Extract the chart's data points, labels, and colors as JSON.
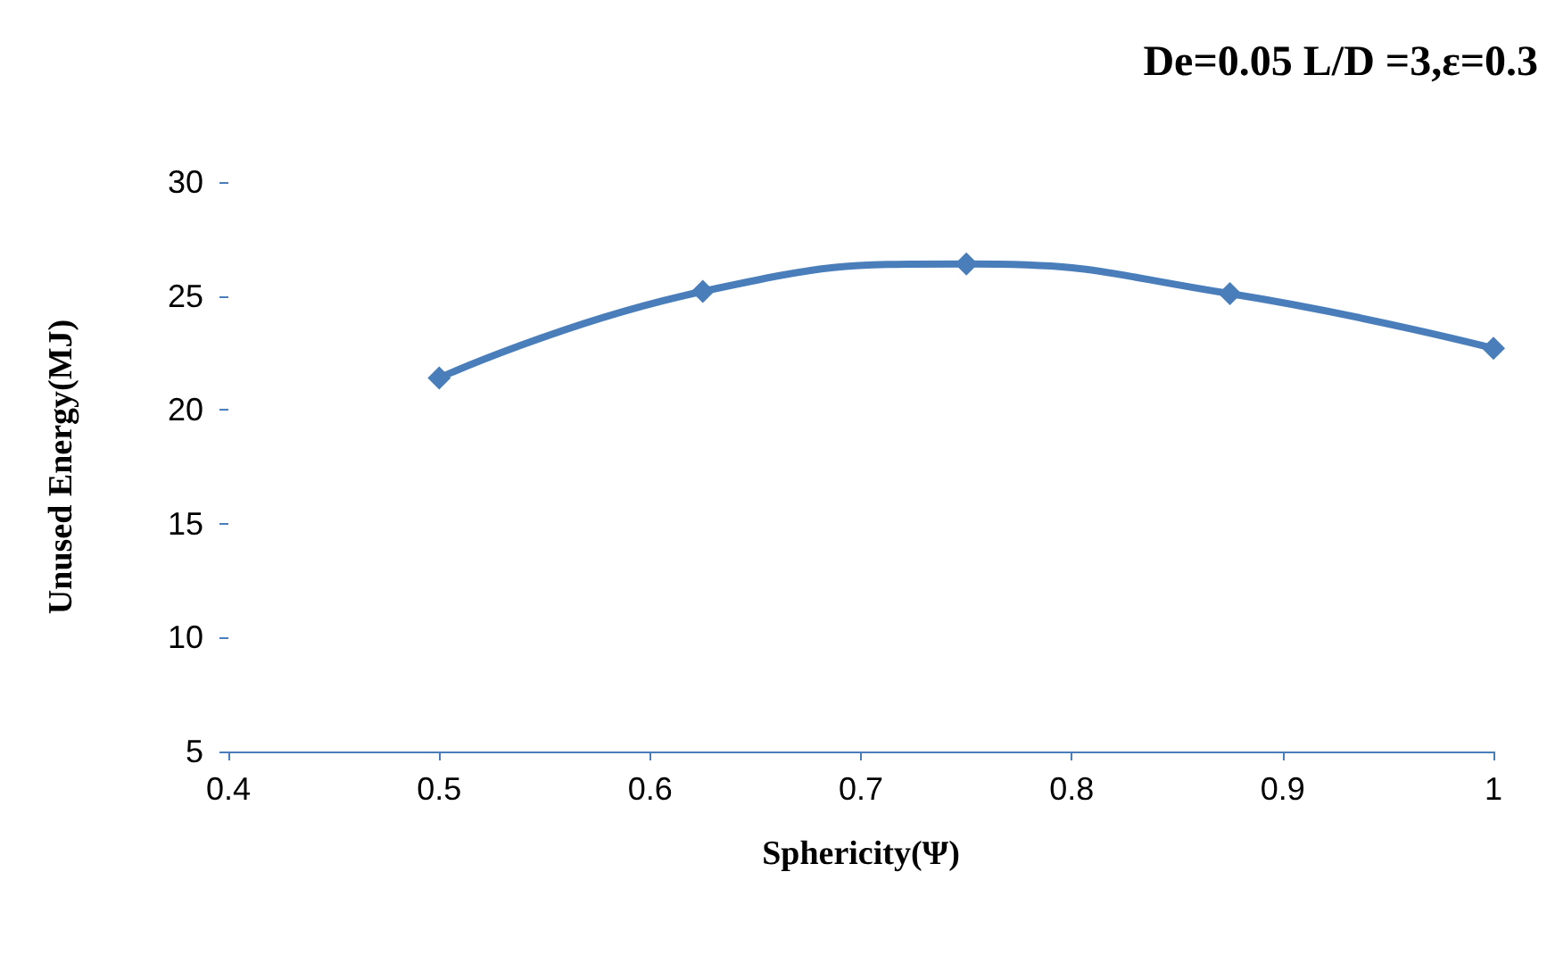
{
  "chart_data": {
    "type": "line",
    "title": "De=0.05 L/D =3,ε=0.3",
    "xlabel": "Sphericity(Ψ)",
    "ylabel": "Unused Energy(MJ)",
    "x": [
      0.5,
      0.625,
      0.75,
      0.875,
      1
    ],
    "series": [
      {
        "color": "#4a7ebb",
        "values": [
          21.4,
          25.2,
          26.4,
          25.1,
          22.7
        ]
      }
    ],
    "xlim": [
      0.4,
      1
    ],
    "xticks": [
      0.4,
      0.5,
      0.6,
      0.7,
      0.8,
      0.9,
      1
    ],
    "ylim": [
      5,
      30
    ],
    "yticks": [
      5,
      10,
      15,
      20,
      25,
      30
    ],
    "grid": false,
    "marker": "diamond",
    "line_style": "solid"
  }
}
